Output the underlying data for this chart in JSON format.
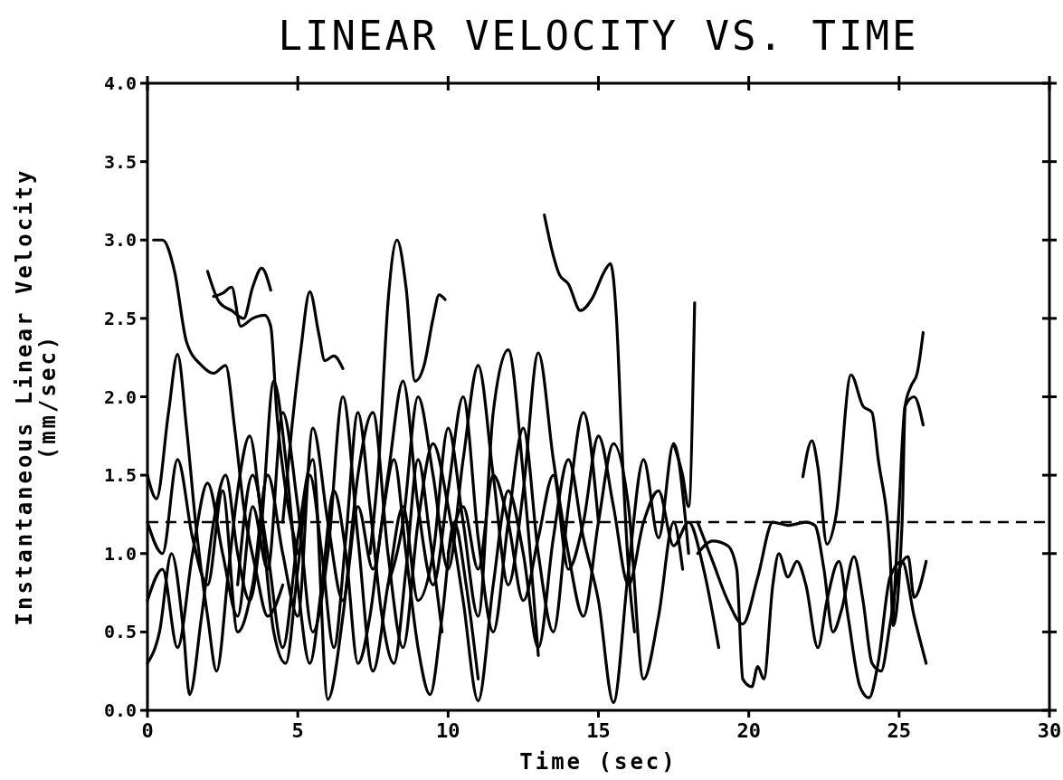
{
  "chart_data": {
    "type": "line",
    "title": "LINEAR VELOCITY VS. TIME",
    "xlabel": "Time (sec)",
    "ylabel": "Instantaneous Linear Velocity\n(mm/sec)",
    "xlim": [
      0,
      30
    ],
    "xticks": [
      0,
      5,
      10,
      15,
      20,
      25,
      30
    ],
    "ylim": [
      0,
      4
    ],
    "yticks": [
      {
        "value": 0,
        "label": "0.0"
      },
      {
        "value": 0.5,
        "label": "0.5"
      },
      {
        "value": 1,
        "label": "1.0"
      },
      {
        "value": 1.5,
        "label": "1.5"
      },
      {
        "value": 2,
        "label": "2.0"
      },
      {
        "value": 2.5,
        "label": "2.5"
      },
      {
        "value": 3,
        "label": "3.0"
      },
      {
        "value": 3.5,
        "label": "3.5"
      },
      {
        "value": 4,
        "label": "4.0"
      }
    ],
    "grid": false,
    "marker": "none",
    "line_style": "solid",
    "ref_lines": [
      {
        "axis": "y",
        "value": 1.2,
        "line_style": "dashed",
        "color": "#000000"
      }
    ],
    "series": [
      {
        "color": "#000000",
        "x": [
          0.2,
          0.5,
          0.9,
          1.3,
          1.8,
          2.2,
          2.6,
          2.9,
          3.2,
          3.6,
          4.0,
          4.5
        ],
        "values": [
          3.0,
          3.0,
          2.8,
          2.35,
          2.2,
          2.15,
          2.2,
          1.8,
          1.3,
          0.9,
          0.6,
          0.8
        ]
      },
      {
        "color": "#000000",
        "x": [
          2.2,
          2.5,
          2.8,
          3.1,
          3.5,
          3.9,
          4.1,
          4.3,
          4.6,
          5.0
        ],
        "values": [
          2.64,
          2.66,
          2.7,
          2.45,
          2.5,
          2.52,
          2.45,
          1.9,
          1.4,
          1.0
        ]
      },
      {
        "color": "#000000",
        "x": [
          2.0,
          2.4,
          2.8,
          3.2,
          3.5,
          3.8,
          4.1
        ],
        "values": [
          2.8,
          2.6,
          2.55,
          2.5,
          2.7,
          2.82,
          2.68
        ]
      },
      {
        "color": "#000000",
        "x": [
          4.5,
          4.8,
          5.1,
          5.4,
          5.7,
          5.9,
          6.2,
          6.5
        ],
        "values": [
          1.2,
          1.8,
          2.3,
          2.67,
          2.4,
          2.23,
          2.26,
          2.18
        ]
      },
      {
        "color": "#000000",
        "x": [
          7.4,
          7.7,
          8.0,
          8.3,
          8.6,
          8.9,
          9.2,
          9.5,
          9.7,
          9.9
        ],
        "values": [
          1.0,
          1.6,
          2.6,
          3.0,
          2.7,
          2.1,
          2.2,
          2.5,
          2.65,
          2.62
        ]
      },
      {
        "color": "#000000",
        "x": [
          13.2,
          13.5,
          13.7,
          14.0,
          14.4,
          14.8,
          15.2,
          15.4,
          15.6,
          15.8,
          16.0,
          16.2
        ],
        "values": [
          3.16,
          2.9,
          2.78,
          2.72,
          2.55,
          2.63,
          2.8,
          2.85,
          2.5,
          1.6,
          0.9,
          0.5
        ]
      },
      {
        "color": "#000000",
        "x": [
          17.5,
          17.8,
          18.0,
          18.2
        ],
        "values": [
          1.7,
          1.5,
          1.3,
          2.6
        ]
      },
      {
        "color": "#000000",
        "x": [
          21.8,
          22.1,
          22.3,
          22.6,
          22.9,
          23.4,
          23.8,
          24.1,
          24.3,
          24.7,
          24.8,
          25.1,
          25.2,
          25.4,
          25.6,
          25.8
        ],
        "values": [
          1.49,
          1.72,
          1.55,
          1.06,
          1.24,
          2.14,
          1.94,
          1.9,
          1.61,
          0.99,
          0.54,
          1.2,
          1.94,
          2.07,
          2.15,
          2.41
        ]
      },
      {
        "color": "#000000",
        "x": [
          24.8,
          25.0,
          25.2,
          25.5,
          25.8
        ],
        "values": [
          0.58,
          1.3,
          1.94,
          2.0,
          1.82
        ]
      },
      {
        "color": "#000000",
        "x": [
          18.3,
          18.8,
          19.3,
          19.8,
          20.3,
          20.8,
          21.3,
          21.9,
          22.2,
          22.5,
          22.8,
          23.1,
          23.5,
          23.8,
          24.1,
          24.4,
          24.7,
          25.0,
          25.3,
          25.5,
          25.9
        ],
        "values": [
          1.2,
          0.95,
          0.7,
          0.55,
          0.85,
          1.2,
          1.18,
          1.2,
          1.18,
          0.9,
          0.5,
          0.65,
          0.98,
          0.7,
          0.3,
          0.25,
          0.55,
          0.9,
          0.98,
          0.72,
          0.95
        ]
      },
      {
        "color": "#000000",
        "x": [
          18.3,
          18.8,
          19.3,
          19.6,
          19.8,
          20.1,
          20.3,
          20.5,
          20.8,
          21.0,
          21.3,
          21.6,
          21.9,
          22.3,
          22.6,
          23.0,
          23.3,
          23.7,
          24.0,
          24.3,
          24.7,
          25.1,
          25.5,
          25.9
        ],
        "values": [
          1.0,
          1.08,
          1.05,
          0.9,
          0.2,
          0.15,
          0.28,
          0.2,
          0.8,
          1.0,
          0.85,
          0.95,
          0.8,
          0.4,
          0.7,
          0.95,
          0.6,
          0.15,
          0.08,
          0.3,
          0.85,
          0.95,
          0.6,
          0.3
        ]
      },
      {
        "color": "#000000",
        "x": [
          0,
          0.3,
          0.7,
          1.0,
          1.3,
          1.6,
          2.0,
          2.3,
          2.7,
          3.0,
          3.4,
          3.8,
          4.2,
          4.6,
          5.0,
          5.4,
          5.8,
          6.2,
          6.6,
          7.0,
          7.4,
          7.8,
          8.2,
          8.6,
          9.0,
          9.4,
          9.8
        ],
        "values": [
          1.5,
          1.35,
          1.9,
          2.27,
          1.8,
          1.2,
          0.6,
          0.25,
          0.9,
          1.4,
          1.75,
          1.2,
          0.5,
          0.3,
          0.9,
          1.5,
          1.0,
          0.4,
          1.1,
          1.9,
          1.3,
          0.6,
          0.3,
          0.9,
          1.6,
          1.1,
          0.5
        ]
      },
      {
        "color": "#000000",
        "x": [
          0,
          0.4,
          0.8,
          1.2,
          1.4,
          1.8,
          2.2,
          2.6,
          3.0,
          3.4,
          3.8,
          4.2,
          4.6,
          5.0,
          5.4,
          5.8,
          6.2,
          6.6,
          7.0,
          7.4,
          7.8,
          8.2,
          8.6,
          9.0,
          9.4,
          9.8,
          10.2,
          10.6,
          11.0
        ],
        "values": [
          0.3,
          0.5,
          1.0,
          0.5,
          0.1,
          0.6,
          1.2,
          1.5,
          1.0,
          0.7,
          1.2,
          2.1,
          1.6,
          0.8,
          0.3,
          0.8,
          1.4,
          1.0,
          0.3,
          0.6,
          1.2,
          1.6,
          1.0,
          0.4,
          0.1,
          0.6,
          1.2,
          0.8,
          0.2
        ]
      },
      {
        "color": "#000000",
        "x": [
          0,
          0.5,
          1.0,
          1.5,
          2.0,
          2.5,
          3.0,
          3.5,
          4.0,
          4.5,
          5.0,
          5.5,
          6.0,
          6.5,
          7.0,
          7.5,
          8.0,
          8.5,
          9.0,
          9.5,
          10.0,
          10.5,
          11.0,
          11.5,
          12.0,
          12.5,
          13.0,
          13.5,
          14.0,
          14.5,
          15.0
        ],
        "values": [
          1.2,
          1.0,
          1.6,
          1.1,
          0.8,
          1.4,
          0.5,
          0.8,
          1.5,
          1.0,
          0.6,
          1.8,
          1.2,
          0.7,
          1.3,
          0.9,
          1.5,
          2.1,
          1.3,
          0.8,
          1.4,
          2.0,
          1.1,
          0.5,
          1.2,
          1.8,
          1.0,
          0.5,
          1.3,
          1.9,
          1.2
        ]
      },
      {
        "color": "#000000",
        "x": [
          3.0,
          3.5,
          4.0,
          4.5,
          5.0,
          5.5,
          6.0,
          6.5,
          7.0,
          7.5,
          8.0,
          8.5,
          9.0,
          9.5,
          10.0,
          10.5,
          11.0,
          11.5,
          12.0,
          12.5,
          13.0,
          13.5,
          14.0,
          14.5,
          15.0,
          15.5,
          16.0,
          16.5,
          17.0,
          17.5,
          18.0
        ],
        "values": [
          0.8,
          1.5,
          1.0,
          0.4,
          1.1,
          1.6,
          0.07,
          0.6,
          1.5,
          1.9,
          1.0,
          0.4,
          1.2,
          1.7,
          1.3,
          0.7,
          0.06,
          0.8,
          1.4,
          1.0,
          0.4,
          1.1,
          1.6,
          1.1,
          0.7,
          0.05,
          0.9,
          1.6,
          1.1,
          1.7,
          1.0
        ]
      },
      {
        "color": "#000000",
        "x": [
          8.0,
          8.5,
          9.0,
          9.5,
          10.0,
          10.5,
          11.0,
          11.5,
          12.0,
          12.5,
          13.0,
          13.5,
          14.0,
          14.5,
          15.0,
          15.5,
          16.0,
          16.5,
          17.0,
          17.5,
          17.8
        ],
        "values": [
          0.8,
          1.2,
          2.0,
          1.5,
          0.9,
          1.6,
          2.2,
          1.5,
          0.8,
          1.4,
          2.28,
          1.6,
          1.0,
          0.6,
          1.2,
          1.7,
          1.3,
          0.2,
          0.6,
          1.2,
          0.9
        ]
      },
      {
        "color": "#000000",
        "x": [
          0,
          0.5,
          1.0,
          1.5,
          2.0,
          2.5,
          3.0,
          3.5,
          4.0,
          4.5,
          5.0,
          5.5,
          6.0,
          6.5,
          7.0,
          7.5,
          8.0,
          8.5,
          9.0,
          9.5,
          10.0,
          10.5,
          11.0,
          11.5,
          12.0,
          12.5,
          13.0
        ],
        "values": [
          0.7,
          0.9,
          0.4,
          1.0,
          1.45,
          1.0,
          0.6,
          1.3,
          0.9,
          1.9,
          1.3,
          0.5,
          1.0,
          2.0,
          1.1,
          0.25,
          0.8,
          1.3,
          0.7,
          1.0,
          1.8,
          1.2,
          0.6,
          1.9,
          2.3,
          1.5,
          0.35
        ]
      },
      {
        "color": "#000000",
        "x": [
          10,
          10.5,
          11,
          11.5,
          12,
          12.5,
          13,
          13.5,
          14,
          14.5,
          15,
          15.5,
          16,
          16.5,
          17,
          17.5,
          18,
          18.5,
          19
        ],
        "values": [
          1.0,
          1.3,
          0.9,
          1.5,
          1.2,
          0.7,
          1.1,
          1.5,
          0.9,
          1.2,
          1.75,
          1.3,
          0.8,
          1.2,
          1.4,
          1.05,
          1.2,
          0.9,
          0.4
        ]
      }
    ]
  }
}
